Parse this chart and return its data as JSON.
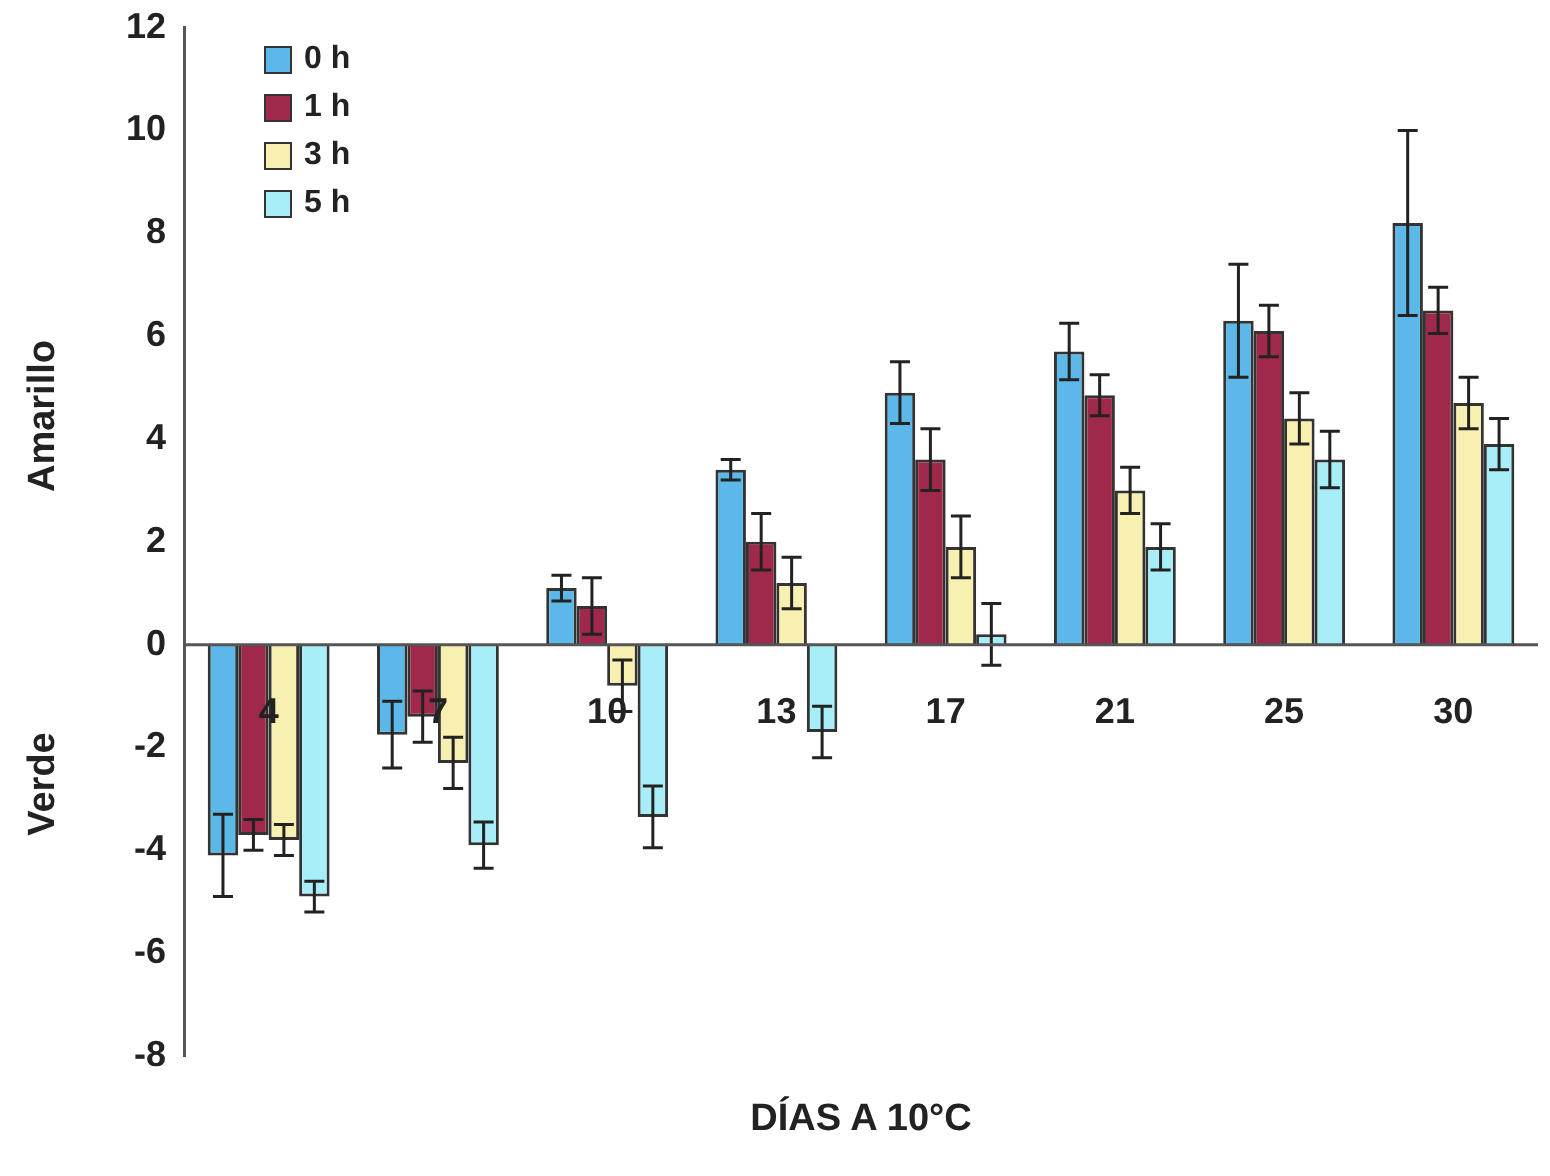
{
  "chart_data": {
    "type": "bar",
    "xlabel": "DÍAS A 10°C",
    "ylabel": "Amarillo",
    "annotations": [
      "Verde"
    ],
    "categories": [
      "4",
      "7",
      "10",
      "13",
      "17",
      "21",
      "25",
      "30"
    ],
    "series": [
      {
        "name": "0 h",
        "color": "#5bb8e8",
        "values": [
          -4.1,
          -1.75,
          1.1,
          3.4,
          4.9,
          5.7,
          6.3,
          8.2
        ],
        "errors": [
          0.8,
          0.65,
          0.25,
          0.2,
          0.6,
          0.55,
          1.1,
          1.8
        ]
      },
      {
        "name": "1 h",
        "color": "#a0284a",
        "values": [
          -3.7,
          -1.4,
          0.75,
          2.0,
          3.6,
          4.85,
          6.1,
          6.5
        ],
        "errors": [
          0.3,
          0.5,
          0.55,
          0.55,
          0.6,
          0.4,
          0.5,
          0.45
        ]
      },
      {
        "name": "3 h",
        "color": "#f8f0b0",
        "values": [
          -3.8,
          -2.3,
          -0.8,
          1.2,
          1.9,
          3.0,
          4.4,
          4.7
        ],
        "errors": [
          0.3,
          0.5,
          0.5,
          0.5,
          0.6,
          0.45,
          0.5,
          0.5
        ]
      },
      {
        "name": "5 h",
        "color": "#a8eef8",
        "values": [
          -4.9,
          -3.9,
          -3.35,
          -1.7,
          0.2,
          1.9,
          3.6,
          3.9
        ],
        "errors": [
          0.3,
          0.45,
          0.6,
          0.5,
          0.6,
          0.45,
          0.55,
          0.5
        ]
      }
    ],
    "ylim": [
      -8,
      12
    ],
    "yticks": [
      -8,
      -6,
      -4,
      -2,
      0,
      2,
      4,
      6,
      8,
      10,
      12
    ],
    "grid": false,
    "legend": "top left"
  }
}
